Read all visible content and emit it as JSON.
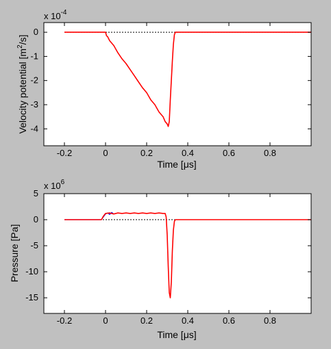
{
  "colors": {
    "figure_bg": "#c0c0c0",
    "axes_bg": "#ffffff",
    "main_series": "#ff0000",
    "overlay_series": "#0000ff",
    "zero_line": "#000000"
  },
  "chart_data": [
    {
      "type": "line",
      "xlabel_text": "Time [",
      "xlabel_unit": "μs",
      "xlabel_close": "]",
      "ylabel_text": "Velocity potential [m",
      "ylabel_sup": "2",
      "ylabel_close": "/s]",
      "exponent_base": "x 10",
      "exponent_power": "-4",
      "xlim": [
        -0.3,
        1.0
      ],
      "ylim": [
        -4.7,
        0.4
      ],
      "xticks": [
        -0.2,
        0,
        0.2,
        0.4,
        0.6,
        0.8
      ],
      "xtick_labels": [
        "-0.2",
        "0",
        "0.2",
        "0.4",
        "0.6",
        "0.8"
      ],
      "yticks": [
        0,
        -1,
        -2,
        -3,
        -4
      ],
      "ytick_labels": [
        "0",
        "-1",
        "-2",
        "-3",
        "-4"
      ],
      "zero_reference_line": true,
      "grid": false,
      "series": [
        {
          "color": "#ff0000",
          "x": [
            -0.2,
            -0.1,
            0.0,
            0.005,
            0.01,
            0.02,
            0.04,
            0.06,
            0.08,
            0.1,
            0.12,
            0.14,
            0.16,
            0.18,
            0.2,
            0.22,
            0.24,
            0.26,
            0.28,
            0.29,
            0.3,
            0.305,
            0.31,
            0.315,
            0.32,
            0.325,
            0.33,
            0.335,
            0.34,
            0.4,
            0.6,
            0.8,
            1.0
          ],
          "y": [
            0,
            0,
            0,
            -0.15,
            -0.18,
            -0.35,
            -0.55,
            -0.85,
            -1.1,
            -1.3,
            -1.55,
            -1.8,
            -2.05,
            -2.3,
            -2.5,
            -2.8,
            -3.0,
            -3.3,
            -3.5,
            -3.7,
            -3.8,
            -3.9,
            -3.7,
            -2.8,
            -2.0,
            -1.2,
            -0.5,
            -0.1,
            0,
            0,
            0,
            0,
            0
          ]
        }
      ]
    },
    {
      "type": "line",
      "xlabel_text": "Time [",
      "xlabel_unit": "μs",
      "xlabel_close": "]",
      "ylabel_text": "Pressure [Pa]",
      "exponent_base": "x 10",
      "exponent_power": "6",
      "xlim": [
        -0.3,
        1.0
      ],
      "ylim": [
        -18,
        5
      ],
      "xticks": [
        -0.2,
        0,
        0.2,
        0.4,
        0.6,
        0.8
      ],
      "xtick_labels": [
        "-0.2",
        "0",
        "0.2",
        "0.4",
        "0.6",
        "0.8"
      ],
      "yticks": [
        5,
        0,
        -5,
        -10,
        -15
      ],
      "ytick_labels": [
        "5",
        "0",
        "-5",
        "-10",
        "-15"
      ],
      "zero_reference_line": true,
      "grid": false,
      "series": [
        {
          "color": "#0000ff",
          "x": [
            -0.2,
            -0.02,
            0.0,
            0.01,
            0.02,
            0.03,
            0.04,
            0.05
          ],
          "y": [
            0,
            0,
            1.1,
            1.3,
            1.0,
            1.4,
            1.1,
            1.2
          ]
        },
        {
          "color": "#ff0000",
          "x": [
            -0.2,
            -0.02,
            -0.01,
            0.0,
            0.02,
            0.04,
            0.06,
            0.08,
            0.1,
            0.12,
            0.14,
            0.16,
            0.18,
            0.2,
            0.22,
            0.24,
            0.26,
            0.28,
            0.29,
            0.295,
            0.3,
            0.305,
            0.31,
            0.315,
            0.32,
            0.325,
            0.33,
            0.335,
            0.34,
            0.4,
            0.6,
            0.8,
            1.0
          ],
          "y": [
            0,
            0,
            0.7,
            1.2,
            1.3,
            1.1,
            1.3,
            1.2,
            1.3,
            1.2,
            1.3,
            1.2,
            1.3,
            1.2,
            1.3,
            1.2,
            1.3,
            1.2,
            1.2,
            0.5,
            -3.0,
            -9.0,
            -14.0,
            -15.0,
            -12.0,
            -6.0,
            -2.0,
            -0.3,
            0,
            0,
            0,
            0,
            0
          ]
        }
      ]
    }
  ]
}
